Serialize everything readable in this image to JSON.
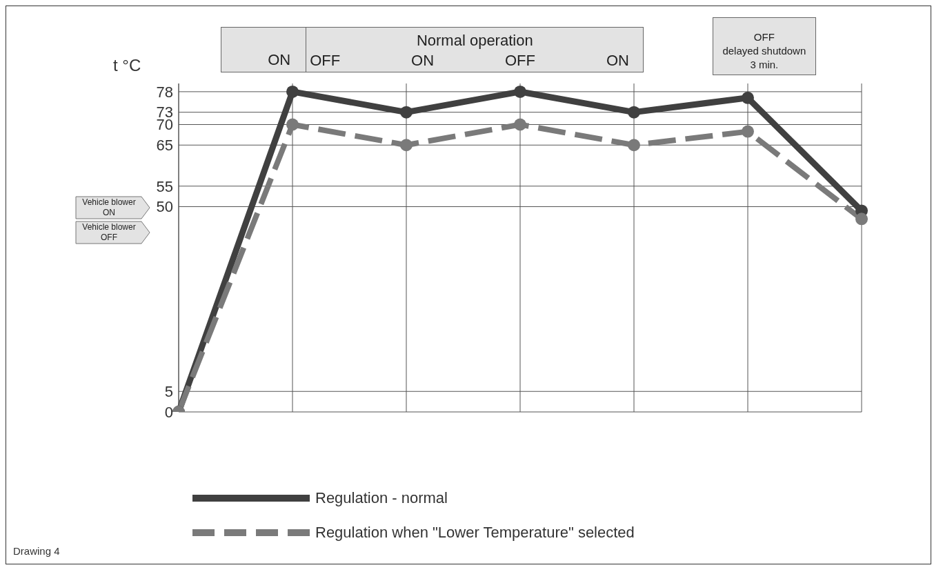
{
  "chart_data": {
    "type": "line",
    "ylabel": "t °C",
    "categories": [
      null,
      null,
      null,
      null,
      null,
      null,
      null
    ],
    "series": [
      {
        "name": "Regulation - normal",
        "color": "#404040",
        "line_style": "solid",
        "values": [
          0,
          78,
          73,
          78,
          73,
          76.5,
          49
        ]
      },
      {
        "name": "Regulation when \"Lower Temperature\" selected",
        "color": "#7a7a7a",
        "line_style": "dashed",
        "values": [
          0,
          70,
          65,
          70,
          65,
          68.3,
          47
        ]
      }
    ],
    "ylim": [
      0,
      80
    ],
    "yticks": [
      0,
      5,
      50,
      55,
      65,
      70,
      73,
      78
    ],
    "grid": true,
    "marker": "circle",
    "legend": "bottom",
    "annotations": [
      "ON",
      "Normal operation",
      "OFF",
      "ON",
      "OFF",
      "ON",
      "OFF\ndelayed shutdown\n3 min.",
      "Vehicle blower\nON",
      "Vehicle blower\nOFF",
      "Drawing 4"
    ]
  }
}
